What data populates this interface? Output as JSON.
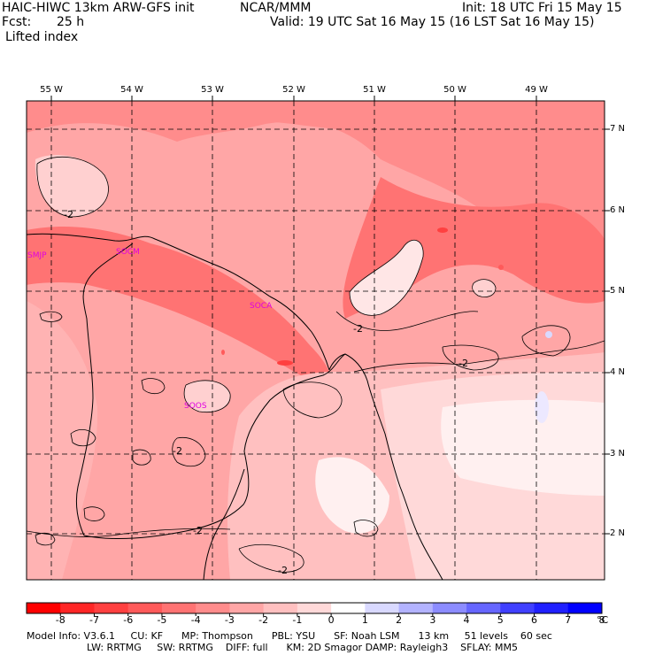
{
  "header": {
    "title_left": "HAIC-HIWC 13km ARW-GFS init",
    "org": "NCAR/MMM",
    "init": "Init: 18 UTC Fri 15 May 15",
    "fcst_label": "Fcst:",
    "fcst_value": "25 h",
    "valid": "Valid: 19 UTC Sat 16 May 15 (16 LST Sat 16 May 15)",
    "field": "Lifted index"
  },
  "map": {
    "longitudes": [
      "55 W",
      "54 W",
      "53 W",
      "52 W",
      "51 W",
      "50 W",
      "49 W"
    ],
    "latitudes": [
      "7 N",
      "6 N",
      "5 N",
      "4 N",
      "3 N",
      "2 N"
    ],
    "stations": [
      "SMJP",
      "SOCM",
      "SOCA",
      "SOOS"
    ],
    "contour_labels": [
      "-2",
      "-2",
      "-2",
      "-2",
      "-2",
      "-2"
    ]
  },
  "colorbar": {
    "labels": [
      "-8",
      "-7",
      "-6",
      "-5",
      "-4",
      "-3",
      "-2",
      "-1",
      "0",
      "1",
      "2",
      "3",
      "4",
      "5",
      "6",
      "7",
      "8"
    ],
    "unit": "°C",
    "colors": [
      "#ff0000",
      "#ff2626",
      "#ff4040",
      "#ff5a5a",
      "#ff7373",
      "#ff8c8c",
      "#ffa6a6",
      "#ffc0c0",
      "#ffd9d9",
      "#ffffff",
      "#d9d9ff",
      "#b3b3ff",
      "#8c8cff",
      "#6666ff",
      "#4040ff",
      "#2020ff",
      "#0000ff"
    ]
  },
  "footer": {
    "line1": "Model Info: V3.6.1     CU: KF      MP: Thompson      PBL: YSU      SF: Noah LSM      13 km     51 levels    60 sec",
    "line2": "LW: RRTMG     SW: RRTMG    DIFF: full      KM: 2D Smagor DAMP: Rayleigh3    SFLAY: MM5"
  }
}
